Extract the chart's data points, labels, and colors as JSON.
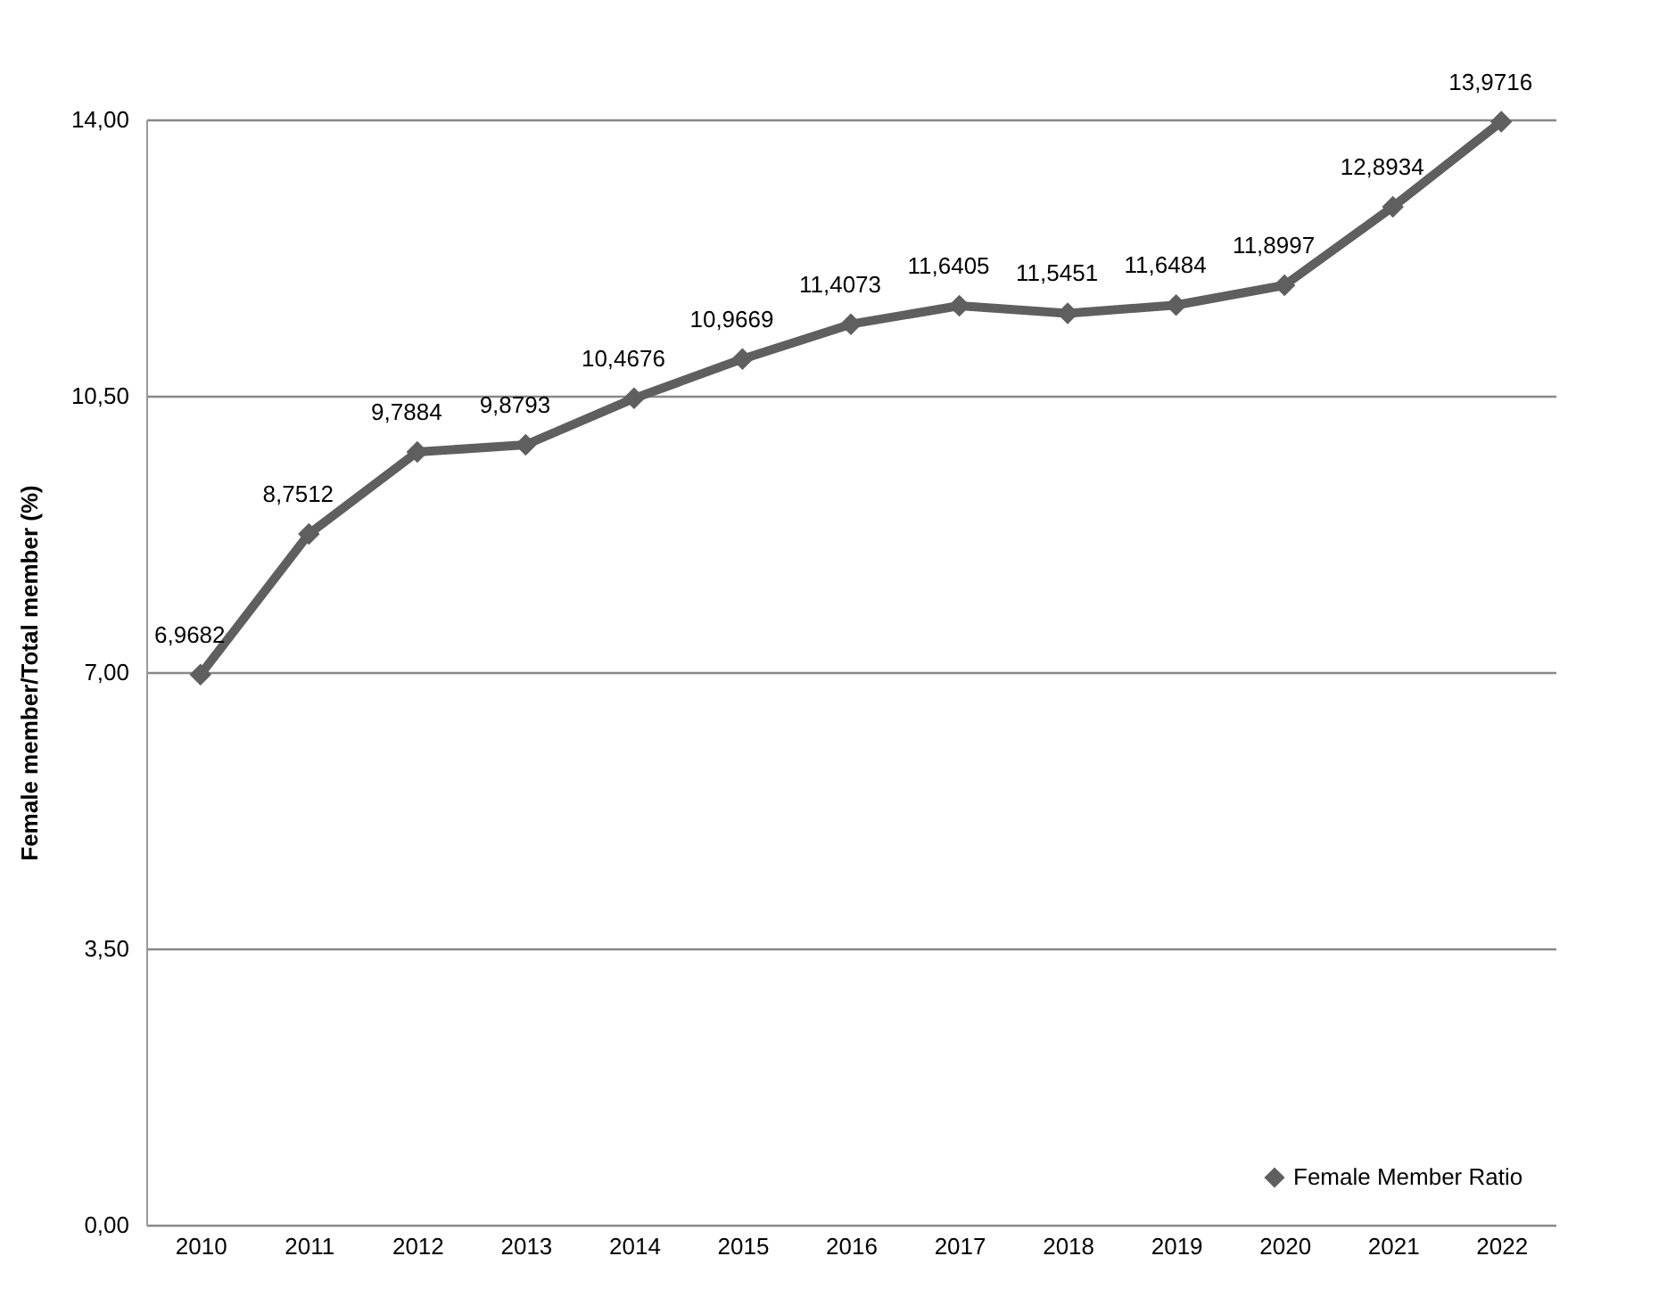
{
  "chart_data": {
    "type": "line",
    "ylabel": "Female member/Total member (%)",
    "categories": [
      "2010",
      "2011",
      "2012",
      "2013",
      "2014",
      "2015",
      "2016",
      "2017",
      "2018",
      "2019",
      "2020",
      "2021",
      "2022"
    ],
    "series": [
      {
        "name": "Female Member Ratio",
        "color": "#5f5f5f",
        "values": [
          6.9682,
          8.7512,
          9.7884,
          9.8793,
          10.4676,
          10.9669,
          11.4073,
          11.6405,
          11.5451,
          11.6484,
          11.8997,
          12.8934,
          13.9716
        ],
        "value_labels": [
          "6,9682",
          "8,7512",
          "9,7884",
          "9,8793",
          "10,4676",
          "10,9669",
          "11,4073",
          "11,6405",
          "11,5451",
          "11,6484",
          "11,8997",
          "12,8934",
          "13,9716"
        ]
      }
    ],
    "ylim": [
      0,
      14
    ],
    "yticks": [
      {
        "value": 0,
        "label": "0,00"
      },
      {
        "value": 3.5,
        "label": "3,50"
      },
      {
        "value": 7,
        "label": "7,00"
      },
      {
        "value": 10.5,
        "label": "10,50"
      },
      {
        "value": 14,
        "label": "14,00"
      }
    ],
    "grid": "y",
    "legend": "bottom right",
    "marker": "diamond",
    "line_style": "solid"
  }
}
